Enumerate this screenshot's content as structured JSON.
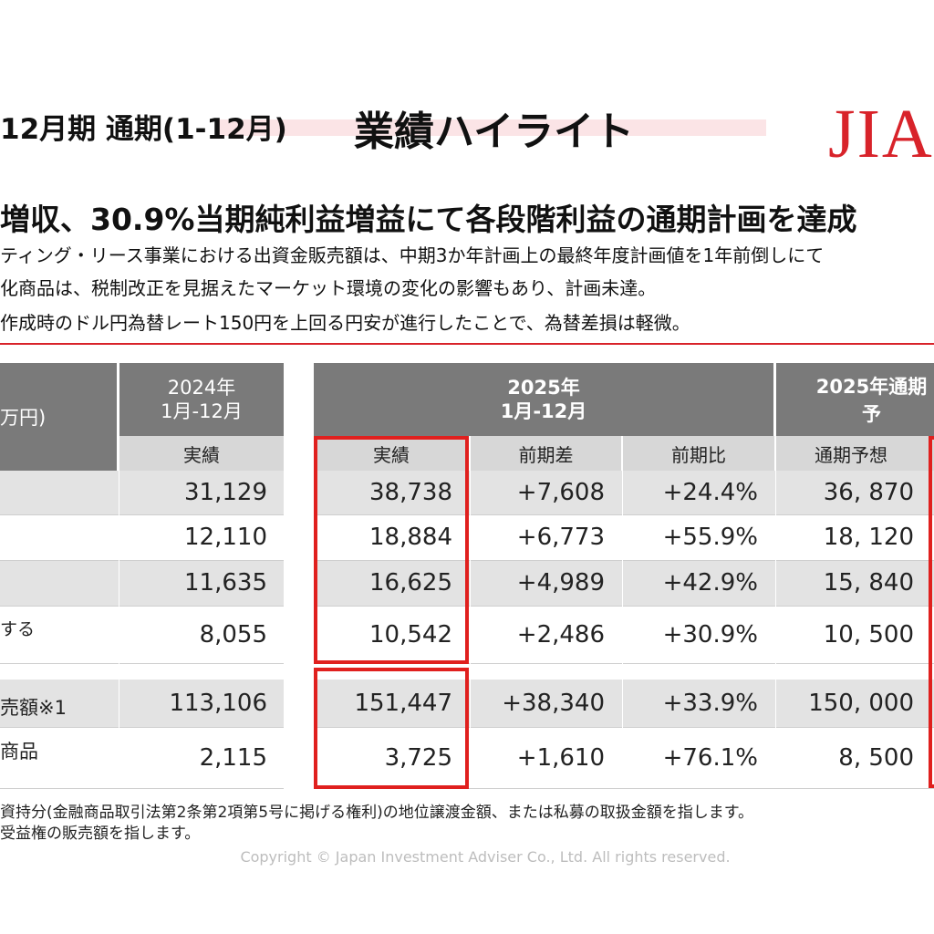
{
  "header": {
    "period": "12月期 通期(1-12月)",
    "title": "業績ハイライト",
    "logo_text": "JIA"
  },
  "summary": {
    "headline": "増収、30.9%当期純利益増益にて各段階利益の通期計画を達成",
    "bullets": [
      "ティング・リース事業における出資金販売額は、中期3か年計画上の最終年度計画値を1年前倒しにて",
      "化商品は、税制改正を見据えたマーケット環境の変化の影響もあり、計画未達。",
      "作成時のドル円為替レート150円を上回る円安が進行したことで、為替差損は軽微。"
    ]
  },
  "table": {
    "unit": "万円)",
    "col2024_header": "2024年\n1月-12月",
    "col2025_header": "2025年\n1月-12月",
    "colPlan_header": "2025年通期予",
    "subheaders": {
      "actual_2024": "実績",
      "actual_2025": "実績",
      "yoy_diff": "前期差",
      "yoy_ratio": "前期比",
      "forecast": "通期予想"
    },
    "row_labels": [
      "",
      "",
      "",
      "する",
      "売額※1",
      "商品"
    ],
    "rows": [
      {
        "v2024": "31,129",
        "v2025": "38,738",
        "diff": "+7,608",
        "ratio": "+24.4%",
        "plan": "36, 870"
      },
      {
        "v2024": "12,110",
        "v2025": "18,884",
        "diff": "+6,773",
        "ratio": "+55.9%",
        "plan": "18, 120"
      },
      {
        "v2024": "11,635",
        "v2025": "16,625",
        "diff": "+4,989",
        "ratio": "+42.9%",
        "plan": "15, 840"
      },
      {
        "v2024": "8,055",
        "v2025": "10,542",
        "diff": "+2,486",
        "ratio": "+30.9%",
        "plan": "10, 500"
      },
      {
        "v2024": "113,106",
        "v2025": "151,447",
        "diff": "+38,340",
        "ratio": "+33.9%",
        "plan": "150, 000"
      },
      {
        "v2024": "2,115",
        "v2025": "3,725",
        "diff": "+1,610",
        "ratio": "+76.1%",
        "plan": "8, 500"
      }
    ]
  },
  "footnotes": [
    "資持分(金融商品取引法第2条第2項第5号に掲げる権利)の地位譲渡金額、または私募の取扱金額を指します。",
    "受益権の販売額を指します。"
  ],
  "copyright": "Copyright © Japan Investment Adviser Co., Ltd. All rights reserved.",
  "colors": {
    "accent": "#d8232a",
    "header_dark": "#7a7a7a",
    "header_light": "#d7d7d7",
    "band": "#e3e3e3"
  }
}
